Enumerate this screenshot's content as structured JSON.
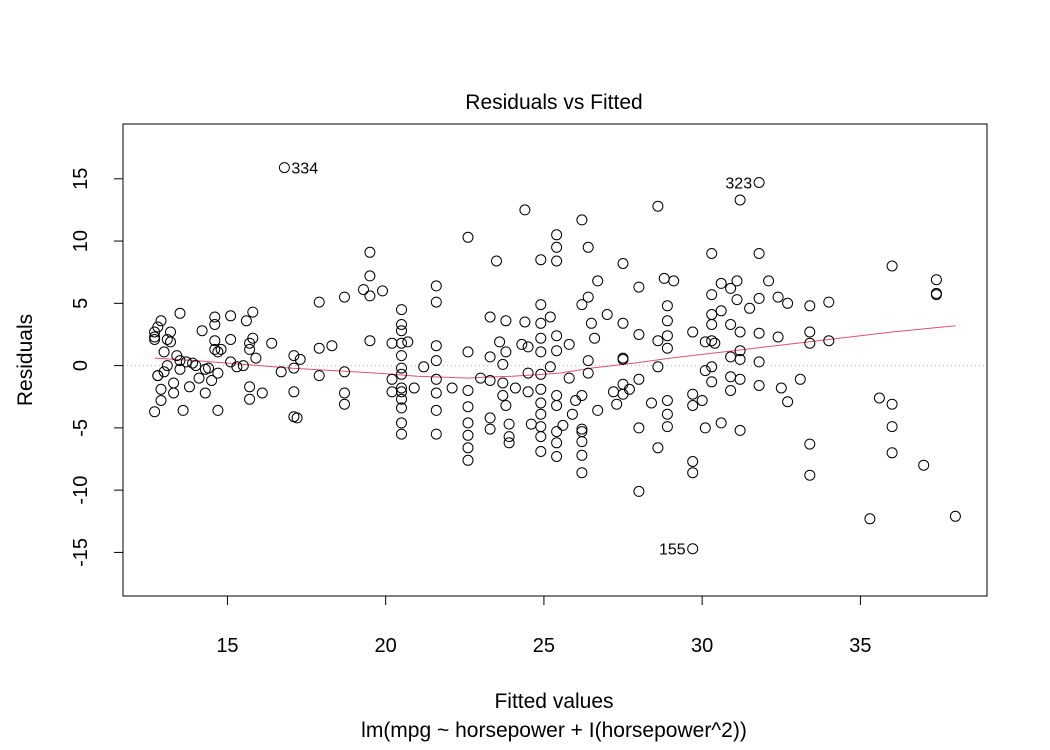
{
  "chart_data": {
    "type": "scatter",
    "title": "Residuals vs Fitted",
    "xlabel": "Fitted values",
    "subtitle": "lm(mpg ~ horsepower + I(horsepower^2))",
    "ylabel": "Residuals",
    "xlim": [
      11.7,
      39.0
    ],
    "ylim": [
      -18.5,
      19.4
    ],
    "xticks": [
      15,
      20,
      25,
      30,
      35
    ],
    "yticks": [
      -15,
      -10,
      -5,
      0,
      5,
      10,
      15
    ],
    "xtick_labels": [
      "15",
      "20",
      "25",
      "30",
      "35"
    ],
    "ytick_labels": [
      "-15",
      "-10",
      "-5",
      "0",
      "5",
      "10",
      "15"
    ],
    "reference_line_y": 0,
    "colors": {
      "points": "#000000",
      "smooth": "#DF536B",
      "reference": "#BEBEBE"
    },
    "points": [
      [
        12.7,
        2.7
      ],
      [
        12.7,
        2.3
      ],
      [
        12.7,
        2.1
      ],
      [
        12.7,
        -3.7
      ],
      [
        12.8,
        3.1
      ],
      [
        12.8,
        -0.8
      ],
      [
        12.8,
        -0.8
      ],
      [
        12.9,
        3.6
      ],
      [
        12.9,
        -1.9
      ],
      [
        12.9,
        -2.8
      ],
      [
        13.0,
        1.1
      ],
      [
        13.0,
        -0.5
      ],
      [
        13.1,
        2.1
      ],
      [
        13.1,
        0.0
      ],
      [
        13.2,
        2.7
      ],
      [
        13.2,
        1.9
      ],
      [
        13.3,
        -1.4
      ],
      [
        13.3,
        -2.2
      ],
      [
        13.4,
        0.8
      ],
      [
        13.5,
        4.2
      ],
      [
        13.5,
        0.4
      ],
      [
        13.5,
        -0.3
      ],
      [
        13.6,
        -3.6
      ],
      [
        13.7,
        0.3
      ],
      [
        13.8,
        -1.7
      ],
      [
        13.9,
        0.2
      ],
      [
        14.0,
        0.0
      ],
      [
        14.1,
        -1.0
      ],
      [
        14.2,
        2.8
      ],
      [
        14.3,
        -2.2
      ],
      [
        14.3,
        -0.3
      ],
      [
        14.4,
        -0.2
      ],
      [
        14.5,
        -1.2
      ],
      [
        14.6,
        3.9
      ],
      [
        14.6,
        3.3
      ],
      [
        14.6,
        2.0
      ],
      [
        14.6,
        1.3
      ],
      [
        14.7,
        -0.6
      ],
      [
        14.7,
        1.1
      ],
      [
        14.7,
        -3.6
      ],
      [
        14.8,
        1.3
      ],
      [
        15.1,
        4.0
      ],
      [
        15.1,
        2.1
      ],
      [
        15.1,
        0.3
      ],
      [
        15.3,
        -0.1
      ],
      [
        15.5,
        0.0
      ],
      [
        15.6,
        3.6
      ],
      [
        15.7,
        1.8
      ],
      [
        15.7,
        1.3
      ],
      [
        15.7,
        -1.7
      ],
      [
        15.7,
        -2.7
      ],
      [
        15.8,
        4.3
      ],
      [
        15.8,
        2.2
      ],
      [
        15.9,
        0.6
      ],
      [
        16.1,
        -2.2
      ],
      [
        16.4,
        1.8
      ],
      [
        16.7,
        -0.5
      ],
      [
        16.8,
        15.9
      ],
      [
        17.1,
        0.8
      ],
      [
        17.1,
        -0.2
      ],
      [
        17.1,
        -2.1
      ],
      [
        17.1,
        -4.1
      ],
      [
        17.2,
        -4.2
      ],
      [
        17.3,
        0.5
      ],
      [
        17.9,
        5.1
      ],
      [
        17.9,
        1.4
      ],
      [
        17.9,
        -0.8
      ],
      [
        18.3,
        1.6
      ],
      [
        18.7,
        5.5
      ],
      [
        18.7,
        -0.5
      ],
      [
        18.7,
        -2.2
      ],
      [
        18.7,
        -3.1
      ],
      [
        19.3,
        6.1
      ],
      [
        19.5,
        9.1
      ],
      [
        19.5,
        7.2
      ],
      [
        19.5,
        5.6
      ],
      [
        19.5,
        2.0
      ],
      [
        19.9,
        6.0
      ],
      [
        20.2,
        1.8
      ],
      [
        20.2,
        -1.1
      ],
      [
        20.2,
        -2.1
      ],
      [
        20.5,
        4.5
      ],
      [
        20.5,
        3.3
      ],
      [
        20.5,
        2.8
      ],
      [
        20.5,
        1.8
      ],
      [
        20.5,
        0.8
      ],
      [
        20.5,
        -0.2
      ],
      [
        20.5,
        -0.7
      ],
      [
        20.5,
        -1.8
      ],
      [
        20.5,
        -2.1
      ],
      [
        20.5,
        -2.7
      ],
      [
        20.5,
        -3.4
      ],
      [
        20.5,
        -4.6
      ],
      [
        20.5,
        -5.5
      ],
      [
        20.7,
        1.9
      ],
      [
        20.9,
        -1.8
      ],
      [
        21.2,
        -0.1
      ],
      [
        21.6,
        6.4
      ],
      [
        21.6,
        5.1
      ],
      [
        21.6,
        1.6
      ],
      [
        21.6,
        0.4
      ],
      [
        21.6,
        -1.1
      ],
      [
        21.6,
        -2.2
      ],
      [
        21.6,
        -3.6
      ],
      [
        21.6,
        -5.5
      ],
      [
        22.1,
        -1.8
      ],
      [
        22.6,
        10.3
      ],
      [
        22.6,
        1.1
      ],
      [
        22.6,
        -2.0
      ],
      [
        22.6,
        -3.3
      ],
      [
        22.6,
        -4.6
      ],
      [
        22.6,
        -5.6
      ],
      [
        22.6,
        -6.6
      ],
      [
        22.6,
        -7.6
      ],
      [
        23.0,
        -1.0
      ],
      [
        23.3,
        3.9
      ],
      [
        23.3,
        0.7
      ],
      [
        23.3,
        -1.2
      ],
      [
        23.3,
        -4.2
      ],
      [
        23.3,
        -5.1
      ],
      [
        23.5,
        8.4
      ],
      [
        23.6,
        1.9
      ],
      [
        23.7,
        0.1
      ],
      [
        23.7,
        -1.4
      ],
      [
        23.7,
        -2.4
      ],
      [
        23.8,
        3.6
      ],
      [
        23.8,
        1.1
      ],
      [
        23.8,
        -3.2
      ],
      [
        23.9,
        -4.7
      ],
      [
        23.9,
        -5.7
      ],
      [
        23.9,
        -6.2
      ],
      [
        24.1,
        -1.8
      ],
      [
        24.3,
        1.7
      ],
      [
        24.4,
        12.5
      ],
      [
        24.4,
        3.5
      ],
      [
        24.5,
        1.5
      ],
      [
        24.5,
        -0.6
      ],
      [
        24.5,
        -2.1
      ],
      [
        24.6,
        -4.7
      ],
      [
        24.9,
        8.5
      ],
      [
        24.9,
        4.9
      ],
      [
        24.9,
        3.4
      ],
      [
        24.9,
        2.2
      ],
      [
        24.9,
        1.1
      ],
      [
        24.9,
        -0.7
      ],
      [
        24.9,
        -1.9
      ],
      [
        24.9,
        -3.0
      ],
      [
        24.9,
        -3.9
      ],
      [
        24.9,
        -4.9
      ],
      [
        24.9,
        -5.7
      ],
      [
        24.9,
        -6.9
      ],
      [
        25.2,
        3.9
      ],
      [
        25.2,
        -0.1
      ],
      [
        25.4,
        10.5
      ],
      [
        25.4,
        9.5
      ],
      [
        25.4,
        8.4
      ],
      [
        25.4,
        2.4
      ],
      [
        25.4,
        1.2
      ],
      [
        25.4,
        -2.4
      ],
      [
        25.4,
        -3.2
      ],
      [
        25.4,
        -5.3
      ],
      [
        25.4,
        -6.2
      ],
      [
        25.4,
        -7.3
      ],
      [
        25.6,
        -4.8
      ],
      [
        25.8,
        1.7
      ],
      [
        25.8,
        -1.0
      ],
      [
        25.9,
        -3.9
      ],
      [
        26.0,
        -2.8
      ],
      [
        26.2,
        11.7
      ],
      [
        26.2,
        4.9
      ],
      [
        26.2,
        -2.4
      ],
      [
        26.2,
        -5.1
      ],
      [
        26.2,
        -5.3
      ],
      [
        26.2,
        -6.1
      ],
      [
        26.2,
        -7.2
      ],
      [
        26.2,
        -8.6
      ],
      [
        26.4,
        9.5
      ],
      [
        26.4,
        5.5
      ],
      [
        26.4,
        0.4
      ],
      [
        26.4,
        -0.6
      ],
      [
        26.5,
        3.4
      ],
      [
        26.6,
        2.2
      ],
      [
        26.7,
        6.8
      ],
      [
        26.7,
        -3.6
      ],
      [
        27.0,
        4.1
      ],
      [
        27.2,
        -2.1
      ],
      [
        27.3,
        -3.1
      ],
      [
        27.5,
        8.2
      ],
      [
        27.5,
        3.4
      ],
      [
        27.5,
        0.5
      ],
      [
        27.5,
        0.6
      ],
      [
        27.5,
        -1.5
      ],
      [
        27.5,
        -2.3
      ],
      [
        27.7,
        -1.9
      ],
      [
        28.0,
        6.3
      ],
      [
        28.0,
        2.5
      ],
      [
        28.0,
        -1.1
      ],
      [
        28.0,
        -5.0
      ],
      [
        28.0,
        -10.1
      ],
      [
        28.4,
        -3.0
      ],
      [
        28.6,
        12.8
      ],
      [
        28.6,
        2.0
      ],
      [
        28.6,
        -0.1
      ],
      [
        28.6,
        -6.6
      ],
      [
        28.8,
        7.0
      ],
      [
        28.9,
        4.8
      ],
      [
        28.9,
        3.6
      ],
      [
        28.9,
        2.4
      ],
      [
        28.9,
        1.4
      ],
      [
        28.9,
        -2.8
      ],
      [
        28.9,
        -3.9
      ],
      [
        28.9,
        -4.9
      ],
      [
        29.1,
        6.8
      ],
      [
        29.7,
        2.7
      ],
      [
        29.7,
        -2.3
      ],
      [
        29.7,
        -3.2
      ],
      [
        29.7,
        -7.7
      ],
      [
        29.7,
        -8.6
      ],
      [
        29.7,
        -14.7
      ],
      [
        30.0,
        -2.8
      ],
      [
        30.1,
        1.9
      ],
      [
        30.1,
        -0.4
      ],
      [
        30.1,
        -5.0
      ],
      [
        30.3,
        9.0
      ],
      [
        30.3,
        5.7
      ],
      [
        30.3,
        4.1
      ],
      [
        30.3,
        3.3
      ],
      [
        30.3,
        2.0
      ],
      [
        30.3,
        -0.1
      ],
      [
        30.3,
        -1.3
      ],
      [
        30.4,
        1.8
      ],
      [
        30.6,
        6.6
      ],
      [
        30.6,
        4.4
      ],
      [
        30.6,
        -4.6
      ],
      [
        30.9,
        6.2
      ],
      [
        30.9,
        3.3
      ],
      [
        30.9,
        0.7
      ],
      [
        30.9,
        -0.9
      ],
      [
        30.9,
        -2.0
      ],
      [
        31.1,
        6.8
      ],
      [
        31.1,
        5.3
      ],
      [
        31.2,
        13.3
      ],
      [
        31.2,
        2.7
      ],
      [
        31.2,
        1.2
      ],
      [
        31.2,
        0.5
      ],
      [
        31.2,
        -1.1
      ],
      [
        31.2,
        -5.2
      ],
      [
        31.5,
        4.6
      ],
      [
        31.8,
        14.7
      ],
      [
        31.8,
        9.0
      ],
      [
        31.8,
        5.4
      ],
      [
        31.8,
        2.6
      ],
      [
        31.8,
        0.3
      ],
      [
        31.8,
        -1.6
      ],
      [
        32.1,
        6.8
      ],
      [
        32.4,
        5.5
      ],
      [
        32.4,
        2.3
      ],
      [
        32.5,
        -1.8
      ],
      [
        32.7,
        5.0
      ],
      [
        32.7,
        -2.9
      ],
      [
        33.1,
        -1.1
      ],
      [
        33.4,
        4.8
      ],
      [
        33.4,
        2.7
      ],
      [
        33.4,
        1.8
      ],
      [
        33.4,
        -6.3
      ],
      [
        33.4,
        -8.8
      ],
      [
        34.0,
        5.1
      ],
      [
        34.0,
        2.0
      ],
      [
        35.3,
        -12.3
      ],
      [
        35.6,
        -2.6
      ],
      [
        36.0,
        8.0
      ],
      [
        36.0,
        -3.1
      ],
      [
        36.0,
        -4.9
      ],
      [
        36.0,
        -7.0
      ],
      [
        37.0,
        -8.0
      ],
      [
        37.4,
        6.9
      ],
      [
        37.4,
        5.8
      ],
      [
        37.4,
        5.7
      ],
      [
        38.0,
        -12.1
      ]
    ],
    "smooth_line": [
      [
        12.7,
        0.6
      ],
      [
        14.0,
        0.4
      ],
      [
        15.0,
        0.2
      ],
      [
        16.0,
        0.0
      ],
      [
        17.0,
        -0.2
      ],
      [
        18.0,
        -0.35
      ],
      [
        19.0,
        -0.5
      ],
      [
        20.0,
        -0.65
      ],
      [
        21.0,
        -0.85
      ],
      [
        22.0,
        -0.95
      ],
      [
        22.6,
        -1.0
      ],
      [
        23.0,
        -0.95
      ],
      [
        24.0,
        -0.85
      ],
      [
        25.0,
        -0.7
      ],
      [
        25.5,
        -0.6
      ],
      [
        26.0,
        -0.4
      ],
      [
        26.5,
        -0.2
      ],
      [
        27.0,
        -0.05
      ],
      [
        28.0,
        0.25
      ],
      [
        29.0,
        0.6
      ],
      [
        30.0,
        0.9
      ],
      [
        31.0,
        1.2
      ],
      [
        32.0,
        1.5
      ],
      [
        33.0,
        1.8
      ],
      [
        34.0,
        2.1
      ],
      [
        35.0,
        2.4
      ],
      [
        36.0,
        2.7
      ],
      [
        37.0,
        2.95
      ],
      [
        38.0,
        3.2
      ]
    ],
    "annotations": [
      {
        "label": "334",
        "x": 16.8,
        "y": 15.9,
        "side": "right"
      },
      {
        "label": "323",
        "x": 31.8,
        "y": 14.7,
        "side": "left"
      },
      {
        "label": "155",
        "x": 29.7,
        "y": -14.7,
        "side": "left"
      }
    ]
  }
}
